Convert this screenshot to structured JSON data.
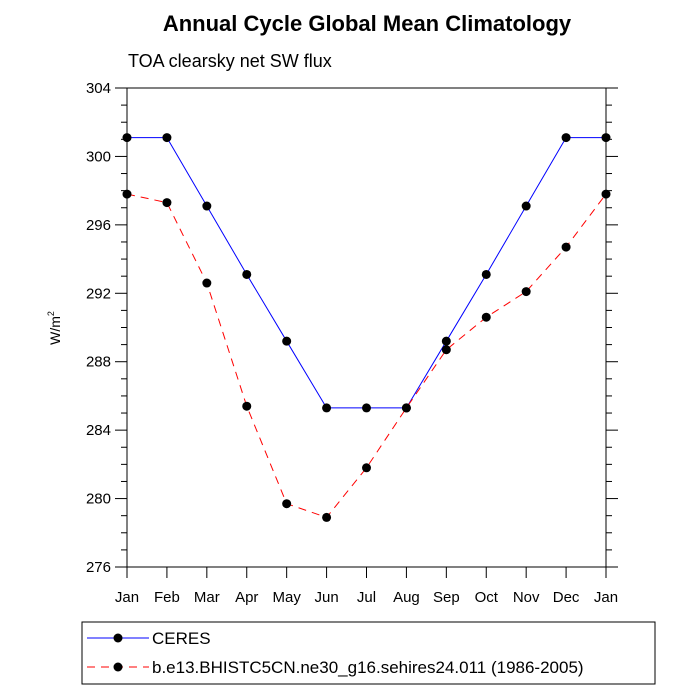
{
  "chart_data": {
    "type": "line",
    "title": "Annual Cycle Global Mean Climatology",
    "subtitle": "TOA clearsky net SW flux",
    "ylabel_base": "W/m",
    "ylabel_sup": "2",
    "categories": [
      "Jan",
      "Feb",
      "Mar",
      "Apr",
      "May",
      "Jun",
      "Jul",
      "Aug",
      "Sep",
      "Oct",
      "Nov",
      "Dec",
      "Jan"
    ],
    "ylim": [
      276,
      304
    ],
    "yticks": [
      "276",
      "280",
      "284",
      "288",
      "292",
      "296",
      "300",
      "304"
    ],
    "grid": false,
    "legend_position": "bottom",
    "series": [
      {
        "name": "CERES",
        "color": "#0000ff",
        "dash": "solid",
        "values": [
          301.1,
          301.1,
          297.1,
          293.1,
          289.2,
          285.3,
          285.3,
          285.3,
          289.2,
          293.1,
          297.1,
          301.1,
          301.1
        ]
      },
      {
        "name": "b.e13.BHISTC5CN.ne30_g16.sehires24.011 (1986-2005)",
        "color": "#ff0000",
        "dash": "dashed",
        "values": [
          297.8,
          297.3,
          292.6,
          285.4,
          279.7,
          278.9,
          281.8,
          285.3,
          288.7,
          290.6,
          292.1,
          294.7,
          297.8
        ]
      }
    ]
  }
}
